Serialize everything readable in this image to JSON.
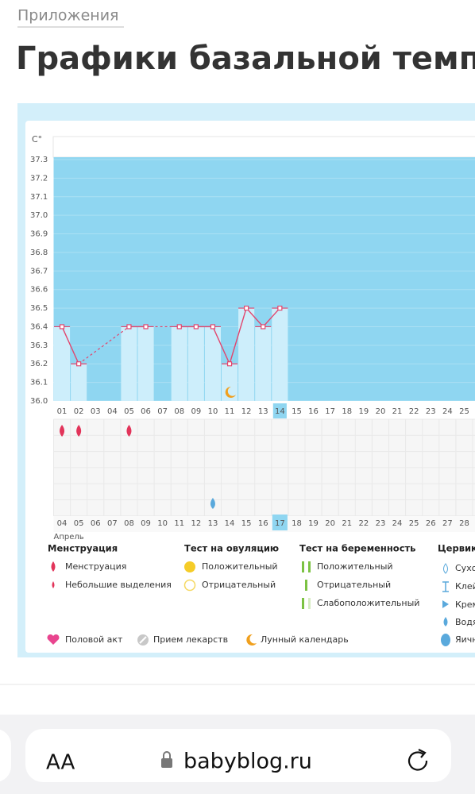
{
  "header": {
    "breadcrumb": "Приложения",
    "title": "Графики базальной температуры"
  },
  "chart_data": {
    "type": "line",
    "y_label": "C°",
    "categories": [
      "01",
      "02",
      "03",
      "04",
      "05",
      "06",
      "07",
      "08",
      "09",
      "10",
      "11",
      "12",
      "13",
      "14",
      "15",
      "16",
      "17",
      "18",
      "19",
      "20",
      "21",
      "22",
      "23",
      "24",
      "25"
    ],
    "values": [
      36.4,
      36.2,
      null,
      null,
      36.4,
      36.4,
      null,
      36.4,
      36.4,
      36.4,
      36.2,
      36.5,
      36.4,
      36.5,
      null,
      null,
      null,
      null,
      null,
      null,
      null,
      null,
      null,
      null,
      null
    ],
    "color": "#e2456d",
    "bar_color": "#cdeefb",
    "background_color": "#8fd6f1",
    "ylim": [
      36.0,
      37.3
    ],
    "yticks": [
      {
        "value": 36.0,
        "label": "36.0"
      },
      36.1,
      36.2,
      36.3,
      36.4,
      36.5,
      36.6,
      36.7,
      36.8,
      36.9,
      {
        "value": 37.0,
        "label": "37.0"
      },
      37.1,
      37.2,
      37.3
    ],
    "grid": true,
    "highlighted_category": "14",
    "month": "Апрель",
    "dates": [
      {
        "label": "04",
        "weekend": false
      },
      {
        "label": "05",
        "weekend": false
      },
      {
        "label": "06",
        "weekend": true
      },
      {
        "label": "07",
        "weekend": true
      },
      {
        "label": "08",
        "weekend": false
      },
      {
        "label": "09",
        "weekend": false
      },
      {
        "label": "10",
        "weekend": false
      },
      {
        "label": "11",
        "weekend": false
      },
      {
        "label": "12",
        "weekend": false
      },
      {
        "label": "13",
        "weekend": true
      },
      {
        "label": "14",
        "weekend": true
      },
      {
        "label": "15",
        "weekend": false
      },
      {
        "label": "16",
        "weekend": false
      },
      {
        "label": "17",
        "weekend": false
      },
      {
        "label": "18",
        "weekend": false
      },
      {
        "label": "19",
        "weekend": false
      },
      {
        "label": "20",
        "weekend": true
      },
      {
        "label": "21",
        "weekend": true
      },
      {
        "label": "22",
        "weekend": false
      },
      {
        "label": "23",
        "weekend": false
      },
      {
        "label": "24",
        "weekend": false
      },
      {
        "label": "25",
        "weekend": false
      },
      {
        "label": "26",
        "weekend": false
      },
      {
        "label": "27",
        "weekend": true
      },
      {
        "label": "28",
        "weekend": true
      }
    ],
    "highlighted_date": "17",
    "events": {
      "menstruation": [
        "01",
        "02",
        "05"
      ],
      "moon": [
        "11"
      ],
      "cervical_water": [
        "10"
      ]
    }
  },
  "legend": {
    "menstruation": {
      "title": "Менструация",
      "items": [
        "Менструация",
        "Небольшие выделения"
      ]
    },
    "ovulation": {
      "title": "Тест на овуляцию",
      "items": [
        "Положительный",
        "Отрицательный"
      ]
    },
    "pregnancy": {
      "title": "Тест на беременность",
      "items": [
        "Положительный",
        "Отрицательный",
        "Слабоположительный"
      ]
    },
    "cervical": {
      "title": "Цервика",
      "items": [
        "Сухо",
        "Клей",
        "Крем",
        "Водя",
        "Яичн"
      ]
    },
    "other": [
      "Половой акт",
      "Прием лекарств",
      "Лунный календарь"
    ]
  },
  "browser": {
    "text_size": "AA",
    "url": "babyblog.ru"
  }
}
